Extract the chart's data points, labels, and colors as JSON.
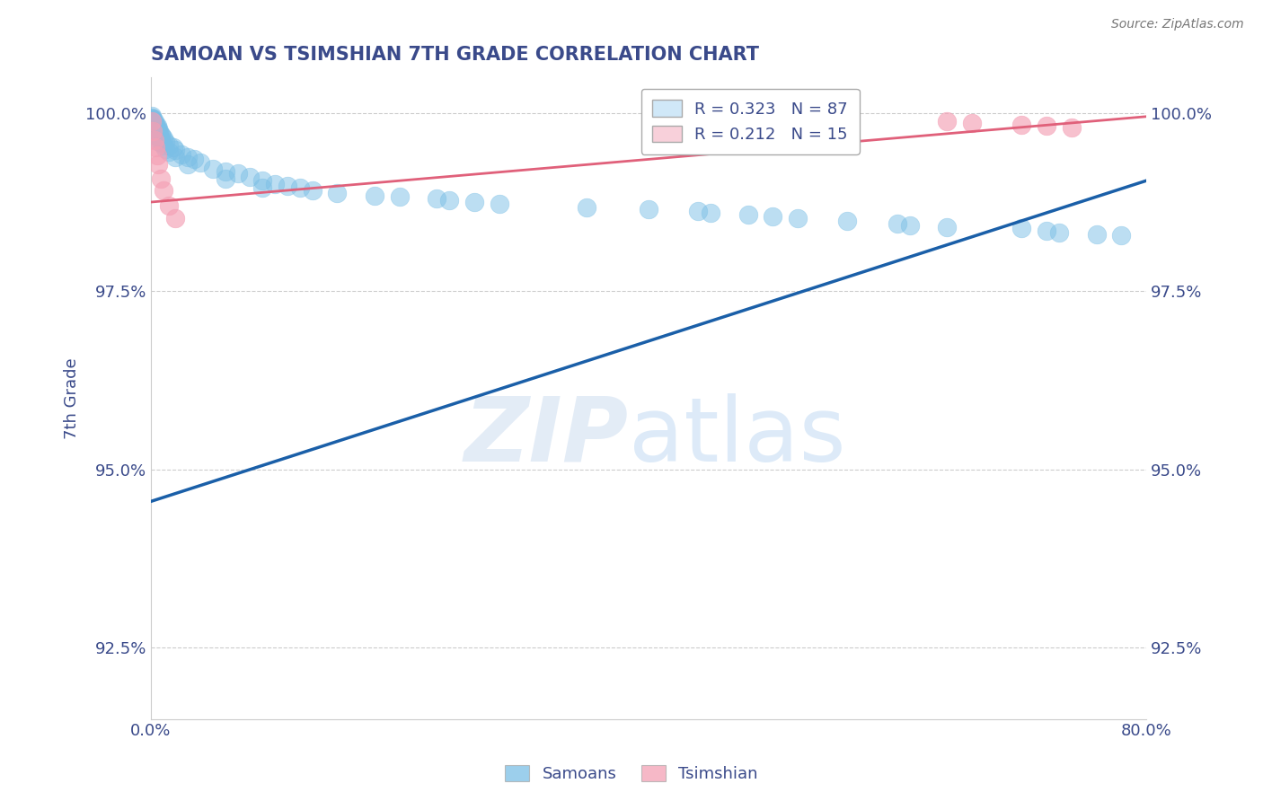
{
  "title": "SAMOAN VS TSIMSHIAN 7TH GRADE CORRELATION CHART",
  "source": "Source: ZipAtlas.com",
  "ylabel": "7th Grade",
  "xlim": [
    0.0,
    0.8
  ],
  "ylim": [
    0.915,
    1.005
  ],
  "xticks": [
    0.0,
    0.1,
    0.2,
    0.3,
    0.4,
    0.5,
    0.6,
    0.7,
    0.8
  ],
  "xticklabels": [
    "0.0%",
    "",
    "",
    "",
    "",
    "",
    "",
    "",
    "80.0%"
  ],
  "yticks": [
    0.925,
    0.95,
    0.975,
    1.0
  ],
  "yticklabels": [
    "92.5%",
    "95.0%",
    "97.5%",
    "100.0%"
  ],
  "samoan_color": "#7bbfe6",
  "tsimshian_color": "#f4a0b5",
  "samoan_line_color": "#1a5fa8",
  "tsimshian_line_color": "#e0607a",
  "legend_box_color": "#d0e8f8",
  "legend_box_color2": "#f8d0da",
  "R_samoan": 0.323,
  "N_samoan": 87,
  "R_tsimshian": 0.212,
  "N_tsimshian": 15,
  "grid_color": "#cccccc",
  "title_color": "#3a4a8a",
  "axis_label_color": "#3a4a8a",
  "tick_color": "#3a4a8a",
  "samoan_x": [
    0.001,
    0.001,
    0.001,
    0.001,
    0.001,
    0.001,
    0.001,
    0.001,
    0.001,
    0.001,
    0.002,
    0.002,
    0.002,
    0.002,
    0.002,
    0.002,
    0.002,
    0.003,
    0.003,
    0.003,
    0.003,
    0.003,
    0.004,
    0.004,
    0.004,
    0.005,
    0.005,
    0.005,
    0.005,
    0.006,
    0.006,
    0.006,
    0.007,
    0.007,
    0.007,
    0.008,
    0.008,
    0.009,
    0.009,
    0.01,
    0.01,
    0.012,
    0.012,
    0.015,
    0.015,
    0.018,
    0.02,
    0.02,
    0.025,
    0.03,
    0.03,
    0.035,
    0.04,
    0.05,
    0.06,
    0.06,
    0.07,
    0.08,
    0.09,
    0.09,
    0.1,
    0.11,
    0.12,
    0.13,
    0.15,
    0.18,
    0.2,
    0.23,
    0.24,
    0.26,
    0.28,
    0.35,
    0.4,
    0.44,
    0.45,
    0.48,
    0.5,
    0.52,
    0.56,
    0.6,
    0.61,
    0.64,
    0.7,
    0.72,
    0.73,
    0.76,
    0.78
  ],
  "samoan_y": [
    0.9996,
    0.9994,
    0.9992,
    0.999,
    0.9988,
    0.9985,
    0.9982,
    0.9978,
    0.9975,
    0.997,
    0.9992,
    0.999,
    0.9988,
    0.9985,
    0.9982,
    0.9978,
    0.9975,
    0.9988,
    0.9985,
    0.998,
    0.9975,
    0.997,
    0.9985,
    0.998,
    0.9975,
    0.9982,
    0.9978,
    0.9972,
    0.9968,
    0.9978,
    0.9972,
    0.9965,
    0.9975,
    0.9968,
    0.996,
    0.997,
    0.9962,
    0.9968,
    0.9958,
    0.9965,
    0.9955,
    0.996,
    0.995,
    0.9955,
    0.9945,
    0.9952,
    0.9948,
    0.9938,
    0.9942,
    0.9938,
    0.9928,
    0.9935,
    0.993,
    0.9922,
    0.9918,
    0.9908,
    0.9915,
    0.991,
    0.9905,
    0.9895,
    0.99,
    0.9898,
    0.9895,
    0.9892,
    0.9888,
    0.9884,
    0.9882,
    0.988,
    0.9878,
    0.9875,
    0.9872,
    0.9868,
    0.9865,
    0.9862,
    0.986,
    0.9858,
    0.9855,
    0.9852,
    0.9848,
    0.9845,
    0.9842,
    0.984,
    0.9838,
    0.9835,
    0.9832,
    0.983,
    0.9828
  ],
  "tsimshian_x": [
    0.001,
    0.002,
    0.003,
    0.004,
    0.005,
    0.006,
    0.008,
    0.01,
    0.015,
    0.02,
    0.64,
    0.66,
    0.7,
    0.72,
    0.74
  ],
  "tsimshian_y": [
    0.9988,
    0.9975,
    0.9962,
    0.9952,
    0.994,
    0.9928,
    0.9908,
    0.9892,
    0.987,
    0.9852,
    0.9988,
    0.9986,
    0.9984,
    0.9982,
    0.998
  ],
  "samoan_line_x": [
    0.0,
    0.8
  ],
  "samoan_line_y": [
    0.9455,
    0.9905
  ],
  "tsimshian_line_x": [
    0.0,
    0.8
  ],
  "tsimshian_line_y": [
    0.9875,
    0.9995
  ]
}
